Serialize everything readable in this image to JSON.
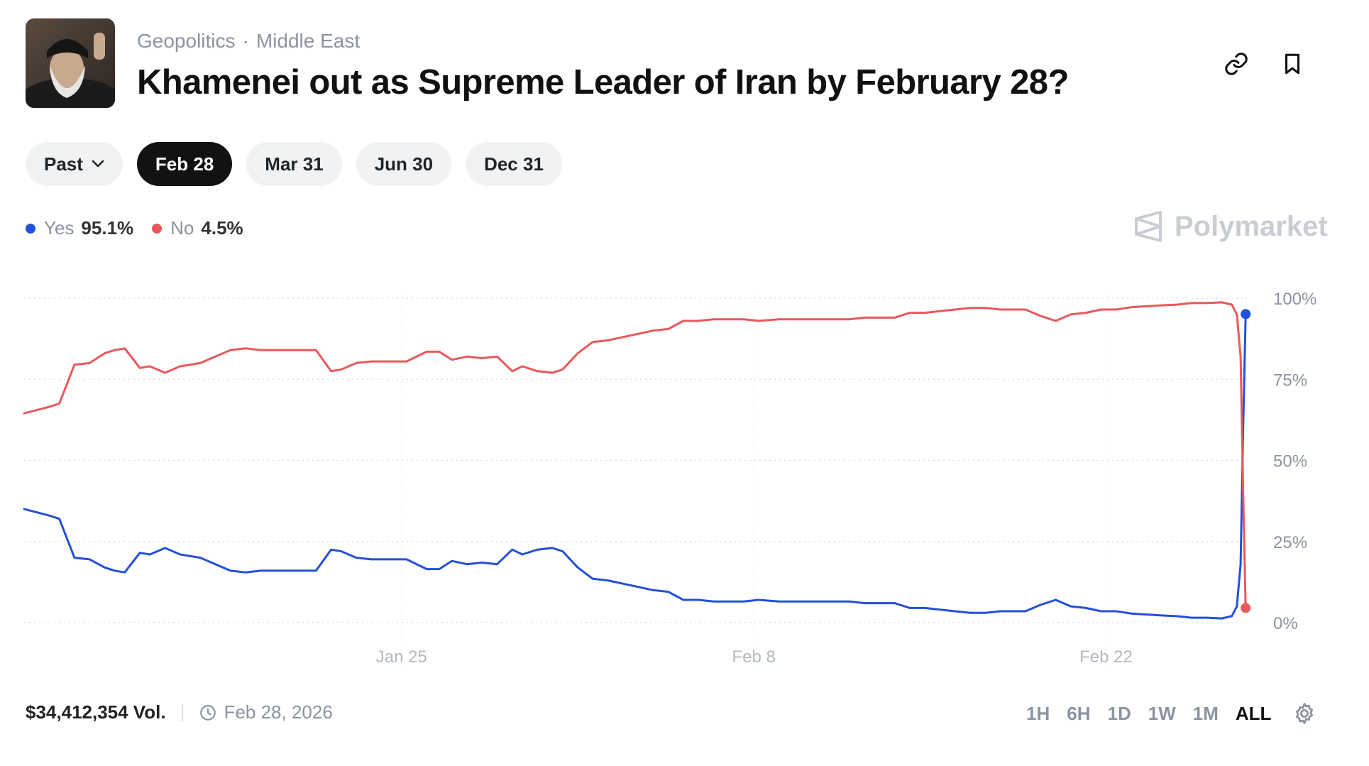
{
  "header": {
    "breadcrumb": [
      "Geopolitics",
      "Middle East"
    ],
    "title": "Khamenei out as Supreme Leader of Iran by February 28?"
  },
  "date_pills": [
    {
      "label": "Past",
      "active": false
    },
    {
      "label": "Feb 28",
      "active": true
    },
    {
      "label": "Mar 31",
      "active": false
    },
    {
      "label": "Jun 30",
      "active": false
    },
    {
      "label": "Dec 31",
      "active": false
    }
  ],
  "legend": [
    {
      "name": "Yes",
      "value": "95.1%",
      "color": "#2350d8"
    },
    {
      "name": "No",
      "value": "4.5%",
      "color": "#e9585a"
    }
  ],
  "brand": "Polymarket",
  "footer": {
    "volume": "$34,412,354 Vol.",
    "end_date": "Feb 28, 2026"
  },
  "time_ranges": [
    {
      "label": "1H",
      "active": false
    },
    {
      "label": "6H",
      "active": false
    },
    {
      "label": "1D",
      "active": false
    },
    {
      "label": "1W",
      "active": false
    },
    {
      "label": "1M",
      "active": false
    },
    {
      "label": "ALL",
      "active": true
    }
  ],
  "chart_data": {
    "type": "line",
    "title": "",
    "xlabel": "",
    "ylabel": "",
    "ylim": [
      0,
      100
    ],
    "yticks": [
      "0%",
      "25%",
      "50%",
      "75%",
      "100%"
    ],
    "yticks_values": [
      0,
      25,
      50,
      75,
      100
    ],
    "x_unit": "days since Jan 10, 2026",
    "xlim": [
      0,
      48.6
    ],
    "xticks": [
      {
        "label": "Jan 25",
        "x": 15
      },
      {
        "label": "Feb 8",
        "x": 29
      },
      {
        "label": "Feb 22",
        "x": 43
      }
    ],
    "series": [
      {
        "name": "Yes",
        "color": "#2350d8",
        "x": [
          0,
          1,
          1.4,
          2,
          2.6,
          3.2,
          3.6,
          4,
          4.6,
          5,
          5.6,
          6.2,
          7,
          7.6,
          8.2,
          8.8,
          9.4,
          10.2,
          11,
          11.6,
          12.2,
          12.6,
          13.2,
          13.8,
          14.4,
          15.2,
          16,
          16.5,
          17,
          17.6,
          18.2,
          18.8,
          19.4,
          19.8,
          20.4,
          21,
          21.4,
          22,
          22.6,
          23.2,
          23.8,
          24.4,
          25,
          25.6,
          26.2,
          26.8,
          27.4,
          28,
          28.6,
          29.2,
          30,
          31,
          31.6,
          32.2,
          32.8,
          33.4,
          34,
          34.6,
          35.2,
          35.8,
          36.4,
          37,
          37.6,
          38.2,
          38.8,
          39.4,
          39.8,
          40.4,
          41,
          41.6,
          42.2,
          42.8,
          43.4,
          44,
          44.6,
          45.2,
          45.8,
          46.4,
          47,
          47.6,
          48,
          48.2,
          48.35,
          48.45,
          48.55
        ],
        "values": [
          35,
          33,
          32,
          20,
          19.5,
          17,
          16,
          15.5,
          21.5,
          21,
          23,
          21,
          20,
          18,
          16,
          15.5,
          16,
          16,
          16,
          16,
          22.5,
          22,
          20,
          19.5,
          19.5,
          19.5,
          16.5,
          16.5,
          19,
          18,
          18.5,
          18,
          22.5,
          21,
          22.5,
          23,
          22,
          17,
          13.5,
          13,
          12,
          11,
          10,
          9.5,
          7,
          7,
          6.5,
          6.5,
          6.5,
          7,
          6.5,
          6.5,
          6.5,
          6.5,
          6.5,
          6,
          6,
          6,
          4.5,
          4.5,
          4,
          3.5,
          3,
          3,
          3.5,
          3.5,
          3.5,
          5.5,
          7,
          5,
          4.5,
          3.5,
          3.5,
          2.8,
          2.5,
          2.2,
          2,
          1.5,
          1.5,
          1.3,
          2,
          5,
          18,
          60,
          95.1
        ]
      },
      {
        "name": "No",
        "color": "#e9585a",
        "x": [
          0,
          1,
          1.4,
          2,
          2.6,
          3.2,
          3.6,
          4,
          4.6,
          5,
          5.6,
          6.2,
          7,
          7.6,
          8.2,
          8.8,
          9.4,
          10.2,
          11,
          11.6,
          12.2,
          12.6,
          13.2,
          13.8,
          14.4,
          15.2,
          16,
          16.5,
          17,
          17.6,
          18.2,
          18.8,
          19.4,
          19.8,
          20.4,
          21,
          21.4,
          22,
          22.6,
          23.2,
          23.8,
          24.4,
          25,
          25.6,
          26.2,
          26.8,
          27.4,
          28,
          28.6,
          29.2,
          30,
          31,
          31.6,
          32.2,
          32.8,
          33.4,
          34,
          34.6,
          35.2,
          35.8,
          36.4,
          37,
          37.6,
          38.2,
          38.8,
          39.4,
          39.8,
          40.4,
          41,
          41.6,
          42.2,
          42.8,
          43.4,
          44,
          44.6,
          45.2,
          45.8,
          46.4,
          47,
          47.6,
          48,
          48.2,
          48.35,
          48.45,
          48.55
        ],
        "values": [
          64.5,
          66.5,
          67.5,
          79.5,
          80,
          83,
          84,
          84.5,
          78.5,
          79,
          77,
          79,
          80,
          82,
          84,
          84.5,
          84,
          84,
          84,
          84,
          77.5,
          78,
          80,
          80.5,
          80.5,
          80.5,
          83.5,
          83.5,
          81,
          82,
          81.5,
          82,
          77.5,
          79,
          77.5,
          77,
          78,
          83,
          86.5,
          87,
          88,
          89,
          90,
          90.5,
          93,
          93,
          93.5,
          93.5,
          93.5,
          93,
          93.5,
          93.5,
          93.5,
          93.5,
          93.5,
          94,
          94,
          94,
          95.5,
          95.5,
          96,
          96.5,
          97,
          97,
          96.5,
          96.5,
          96.5,
          94.5,
          93,
          95,
          95.5,
          96.5,
          96.5,
          97.2,
          97.5,
          97.8,
          98,
          98.5,
          98.5,
          98.7,
          98,
          95,
          82,
          40,
          4.5
        ]
      }
    ]
  }
}
